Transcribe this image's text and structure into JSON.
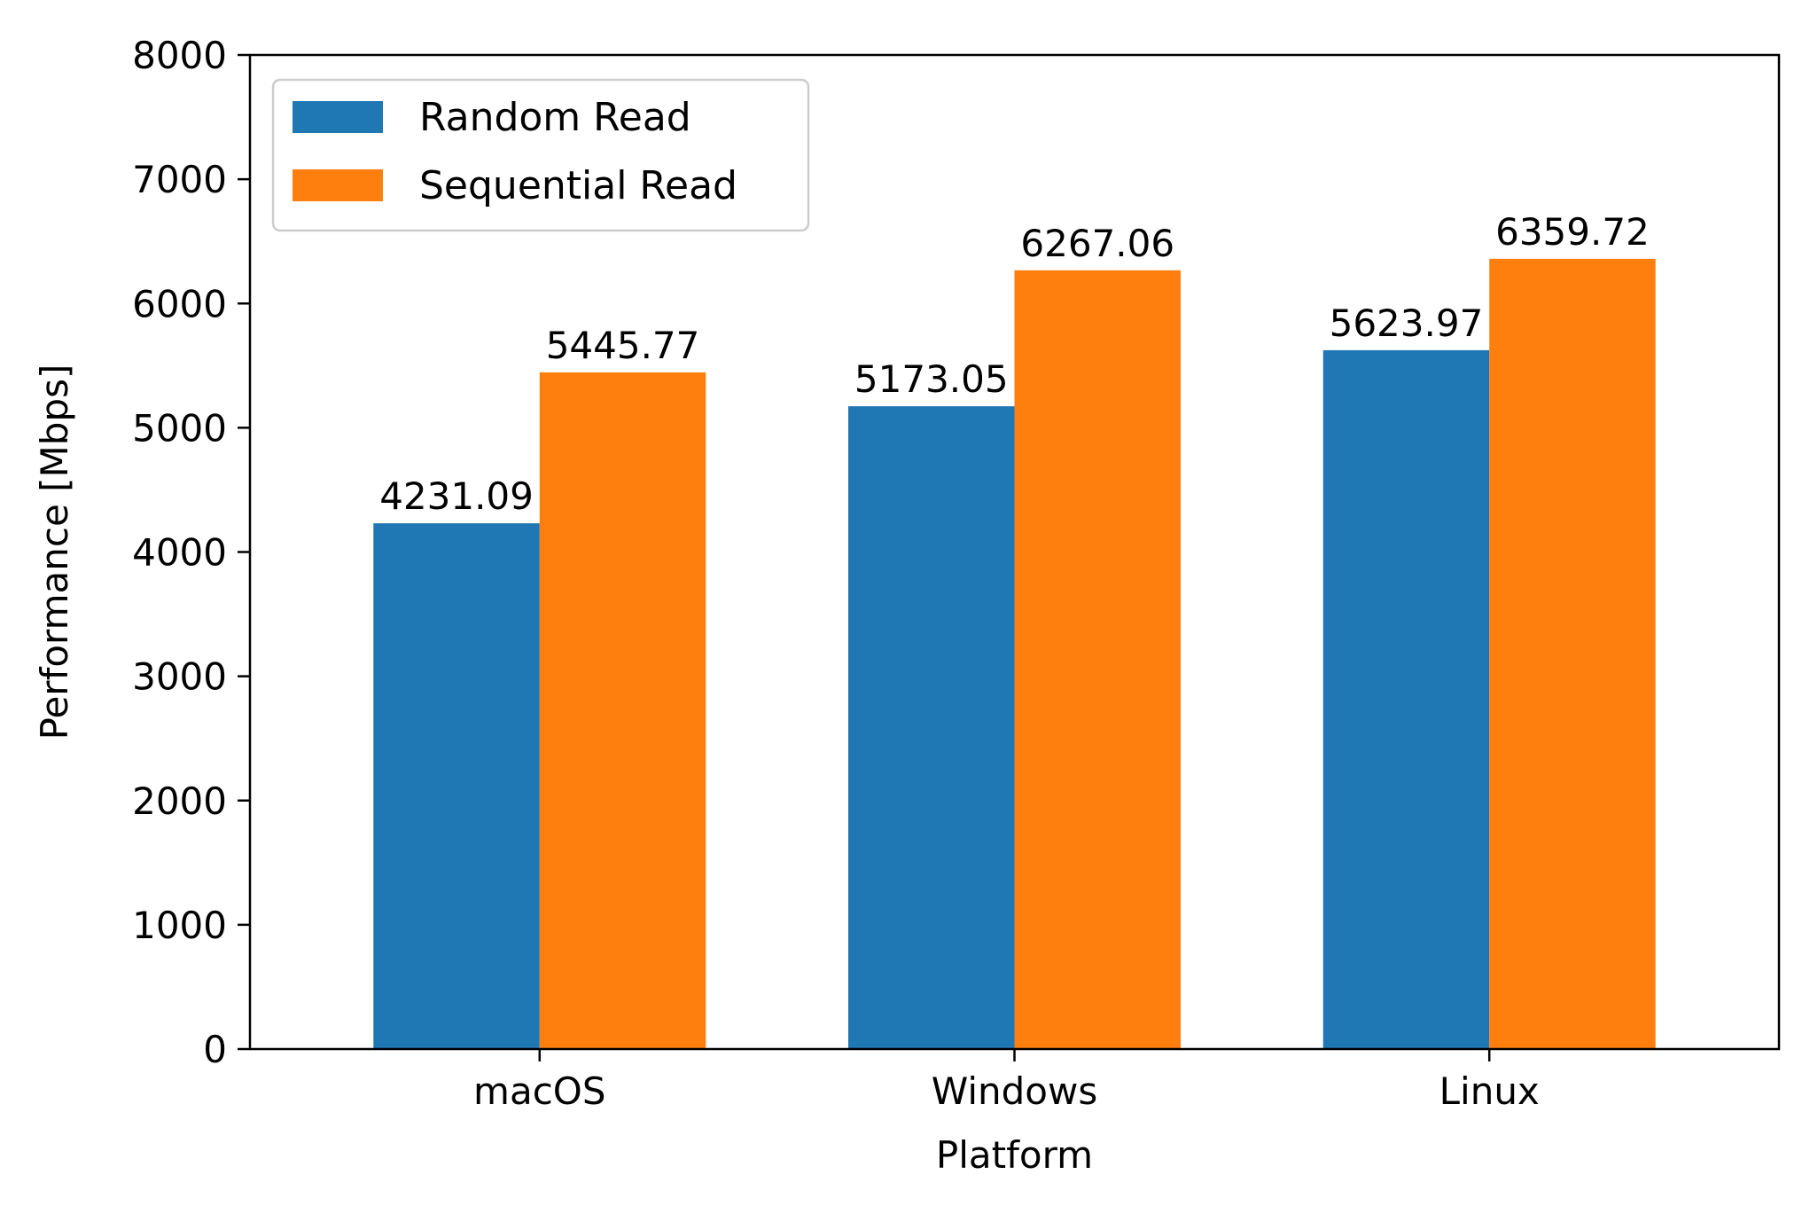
{
  "chart_data": {
    "type": "bar",
    "title": "",
    "xlabel": "Platform",
    "ylabel": "Performance [Mbps]",
    "categories": [
      "macOS",
      "Windows",
      "Linux"
    ],
    "series": [
      {
        "name": "Random Read",
        "values": [
          4231.09,
          5173.05,
          5623.97
        ],
        "color": "#1f77b4"
      },
      {
        "name": "Sequential Read",
        "values": [
          5445.77,
          6267.06,
          6359.72
        ],
        "color": "#ff7f0e"
      }
    ],
    "value_labels": [
      [
        "4231.09",
        "5173.05",
        "5623.97"
      ],
      [
        "5445.77",
        "6267.06",
        "6359.72"
      ]
    ],
    "ylim": [
      0,
      8000
    ],
    "yticks": [
      0,
      1000,
      2000,
      3000,
      4000,
      5000,
      6000,
      7000,
      8000
    ],
    "grid": false,
    "legend_position": "top-left"
  }
}
